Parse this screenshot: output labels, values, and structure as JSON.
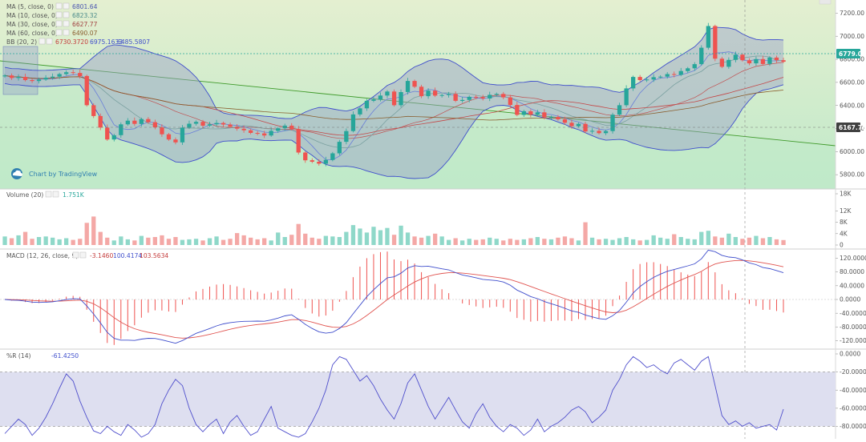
{
  "colors": {
    "up": "#26a69a",
    "down": "#ef5350",
    "vol_up": "#8fd8c9",
    "vol_down": "#f4a8a6",
    "bb": "#3f4ecc",
    "bb_fill": "#9aa0c8",
    "ma5": "#6a7fd8",
    "ma10": "#7aa0a0",
    "ma30": "#c44848",
    "ma60": "#8a5e2e",
    "macd": "#3f4ecc",
    "signal": "#e0534f",
    "hist": "#ef5350",
    "wr": "#4f4fcc",
    "trend": "#3f9a2a",
    "price_bg_top": "#e4efd0",
    "price_bg_bottom": "#bfe9c9",
    "wr_band": "#dedff0"
  },
  "brand": {
    "label": "Chart by TradingView",
    "icon": "tradingview-cloud-icon"
  },
  "legends": {
    "ma5": {
      "label": "MA (5, close, 0)",
      "value": "6801.64"
    },
    "ma10": {
      "label": "MA (10, close, 0)",
      "value": "6823.32"
    },
    "ma30": {
      "label": "MA (30, close, 0)",
      "value": "6627.77"
    },
    "ma60": {
      "label": "MA (60, close, 0)",
      "value": "6490.07"
    },
    "bb": {
      "label": "BB (20, 2)",
      "v1": "6730.3720",
      "v2": "6975.1633",
      "v3": "6485.5807"
    },
    "volume": {
      "label": "Volume (20)",
      "value": "1.751K"
    },
    "macd": {
      "label": "MACD (12, 26, close, 9)",
      "v1": "-3.1460",
      "v2": "100.4174",
      "v3": "103.5634"
    },
    "wr": {
      "label": "%R (14)",
      "value": "-61.4250"
    }
  },
  "badges": {
    "current_price": "6779.01",
    "line_price": "6167.76"
  },
  "chart_data": [
    {
      "type": "candlestick",
      "pane": "price",
      "y_ticks": [
        "7200.00",
        "7000.00",
        "6800.00",
        "6600.00",
        "6400.00",
        "6200.00",
        "6000.00",
        "5800.00"
      ],
      "ylim": [
        5690,
        7300
      ],
      "close": [
        6660,
        6638,
        6648,
        6620,
        6612,
        6625,
        6640,
        6650,
        6672,
        6688,
        6682,
        6655,
        6402,
        6308,
        6208,
        6105,
        6142,
        6236,
        6268,
        6240,
        6282,
        6255,
        6210,
        6150,
        6105,
        6080,
        6208,
        6242,
        6258,
        6225,
        6237,
        6248,
        6235,
        6215,
        6198,
        6185,
        6162,
        6158,
        6140,
        6180,
        6202,
        6225,
        6195,
        5992,
        5925,
        5912,
        5895,
        5928,
        5985,
        6085,
        6178,
        6322,
        6375,
        6440,
        6452,
        6486,
        6521,
        6402,
        6516,
        6612,
        6562,
        6480,
        6528,
        6485,
        6490,
        6500,
        6440,
        6448,
        6475,
        6470,
        6460,
        6492,
        6500,
        6470,
        6404,
        6318,
        6350,
        6320,
        6340,
        6296,
        6300,
        6280,
        6250,
        6220,
        6240,
        6175,
        6180,
        6160,
        6178,
        6320,
        6402,
        6548,
        6647,
        6620,
        6625,
        6645,
        6650,
        6672,
        6665,
        6698,
        6722,
        6758,
        6900,
        7088,
        6805,
        6735,
        6795,
        6840,
        6792,
        6765,
        6802,
        6760,
        6815,
        6792,
        6779
      ],
      "open_close_pairs": "each candle opens at the previous candle's close"
    },
    {
      "type": "line",
      "pane": "price-moving-averages",
      "series": [
        {
          "name": "MA (5, close, 0)"
        },
        {
          "name": "MA (10, close, 0)"
        },
        {
          "name": "MA (30, close, 0)"
        },
        {
          "name": "MA (60, close, 0)"
        },
        {
          "name": "BB (20, 2)"
        }
      ]
    },
    {
      "type": "bar",
      "pane": "volume",
      "y_ticks": [
        "18K",
        "12K",
        "8K",
        "4K",
        "0"
      ],
      "ylim": [
        0,
        18000
      ],
      "values": [
        3000,
        2400,
        3400,
        4600,
        2200,
        2800,
        3000,
        2600,
        2000,
        2400,
        1800,
        2200,
        7800,
        10000,
        4600,
        2600,
        1600,
        3000,
        2000,
        1600,
        3200,
        2600,
        2800,
        3400,
        2200,
        2800,
        1800,
        2000,
        2200,
        1600,
        2400,
        3000,
        1800,
        2200,
        4200,
        3400,
        2600,
        2000,
        2400,
        1600,
        4400,
        2800,
        3600,
        7400,
        4000,
        2600,
        2200,
        3200,
        3000,
        2800,
        4600,
        7000,
        5800,
        4400,
        6400,
        5200,
        6000,
        3600,
        6800,
        4400,
        3000,
        2600,
        3200,
        4000,
        3000,
        1800,
        2400,
        1600,
        2200,
        1800,
        2000,
        2600,
        2200,
        1600,
        2200,
        1800,
        2000,
        2400,
        2800,
        2200,
        2000,
        2600,
        3000,
        2400,
        1600,
        8000,
        2600,
        2000,
        2200,
        1800,
        2400,
        2800,
        2000,
        1600,
        1800,
        3400,
        2600,
        2200,
        3800,
        2800,
        2200,
        2000,
        4600,
        5000,
        3000,
        2600,
        4000,
        2800,
        2200,
        2600,
        3200,
        2400,
        2800,
        2000,
        1751
      ]
    },
    {
      "type": "line",
      "pane": "macd",
      "y_ticks": [
        "120.0000",
        "80.0000",
        "40.0000",
        "0.0000",
        "-40.0000",
        "-80.0000",
        "-120.0000"
      ],
      "ylim": [
        -135,
        135
      ],
      "series": [
        {
          "name": "MACD"
        },
        {
          "name": "Signal"
        },
        {
          "name": "Histogram"
        }
      ]
    },
    {
      "type": "line",
      "pane": "williams-r",
      "y_ticks": [
        "0.0000",
        "-20.0000",
        "-40.0000",
        "-60.0000",
        "-80.0000"
      ],
      "ylim": [
        -92,
        0
      ],
      "band": [
        -80,
        -20
      ],
      "values": [
        -88,
        -80,
        -72,
        -78,
        -90,
        -82,
        -70,
        -55,
        -38,
        -22,
        -30,
        -52,
        -70,
        -85,
        -88,
        -80,
        -86,
        -90,
        -78,
        -84,
        -92,
        -88,
        -78,
        -55,
        -40,
        -28,
        -35,
        -60,
        -78,
        -86,
        -78,
        -72,
        -88,
        -75,
        -68,
        -80,
        -90,
        -86,
        -72,
        -58,
        -82,
        -86,
        -90,
        -92,
        -88,
        -75,
        -60,
        -40,
        -12,
        -3,
        -6,
        -18,
        -30,
        -24,
        -35,
        -50,
        -62,
        -72,
        -55,
        -32,
        -22,
        -40,
        -58,
        -72,
        -60,
        -48,
        -62,
        -75,
        -82,
        -66,
        -55,
        -70,
        -80,
        -86,
        -78,
        -82,
        -90,
        -84,
        -72,
        -86,
        -80,
        -76,
        -70,
        -62,
        -58,
        -64,
        -76,
        -70,
        -62,
        -40,
        -28,
        -12,
        -3,
        -8,
        -15,
        -12,
        -18,
        -22,
        -10,
        -6,
        -12,
        -18,
        -8,
        -3,
        -35,
        -68,
        -78,
        -74,
        -80,
        -76,
        -82,
        -80,
        -78,
        -84,
        -61
      ]
    }
  ]
}
